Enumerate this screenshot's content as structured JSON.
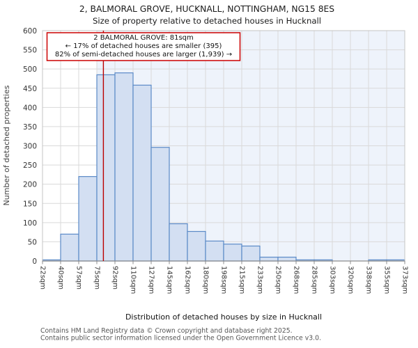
{
  "title": {
    "line1": "2, BALMORAL GROVE, HUCKNALL, NOTTINGHAM, NG15 8ES",
    "line2": "Size of property relative to detached houses in Hucknall"
  },
  "annotation": {
    "line1": "2 BALMORAL GROVE: 81sqm",
    "line2": "← 17% of detached houses are smaller (395)",
    "line3": "82% of semi-detached houses are larger (1,939) →"
  },
  "y_axis": {
    "label": "Number of detached properties",
    "tick_step": 50,
    "max": 600
  },
  "x_axis": {
    "label": "Distribution of detached houses by size in Hucknall",
    "tick_labels": [
      "22sqm",
      "40sqm",
      "57sqm",
      "75sqm",
      "92sqm",
      "110sqm",
      "127sqm",
      "145sqm",
      "162sqm",
      "180sqm",
      "198sqm",
      "215sqm",
      "233sqm",
      "250sqm",
      "268sqm",
      "285sqm",
      "303sqm",
      "320sqm",
      "338sqm",
      "355sqm",
      "373sqm"
    ]
  },
  "footer": {
    "line1": "Contains HM Land Registry data © Crown copyright and database right 2025.",
    "line2": "Contains public sector information licensed under the Open Government Licence v3.0."
  },
  "colors": {
    "bar_fill": "#d3dff2",
    "bar_edge": "#5b8ac7",
    "shade_fill": "#eef3fb",
    "grid": "#d9d9d9",
    "frame": "#c4c4c4",
    "axis": "#8c8c8c",
    "marker_red": "#bb0000",
    "annotation_border": "#cc0000",
    "title_text": "#1a1a1a",
    "tick_text": "#333333",
    "axis_label_text": "#444444",
    "footer_text": "#555555"
  },
  "chart_data": {
    "type": "bar",
    "title": "2, BALMORAL GROVE, HUCKNALL, NOTTINGHAM, NG15 8ES",
    "subtitle": "Size of property relative to detached houses in Hucknall",
    "xlabel": "Distribution of detached houses by size in Hucknall",
    "ylabel": "Number of detached properties",
    "ylim": [
      0,
      600
    ],
    "grid": true,
    "bin_edges_sqm": [
      22,
      40,
      57,
      75,
      92,
      110,
      127,
      145,
      162,
      180,
      198,
      215,
      233,
      250,
      268,
      285,
      303,
      320,
      338,
      355,
      373
    ],
    "counts": [
      3,
      70,
      220,
      485,
      490,
      458,
      296,
      97,
      77,
      52,
      44,
      39,
      10,
      10,
      3,
      3,
      0,
      0,
      3,
      3
    ],
    "marker": {
      "value_sqm": 81,
      "label": "2 BALMORAL GROVE: 81sqm",
      "smaller_pct": 17,
      "smaller_count": 395,
      "larger_pct": 82,
      "larger_count": 1939
    },
    "shaded_region": {
      "from_sqm": 75,
      "to_sqm": 373
    }
  }
}
